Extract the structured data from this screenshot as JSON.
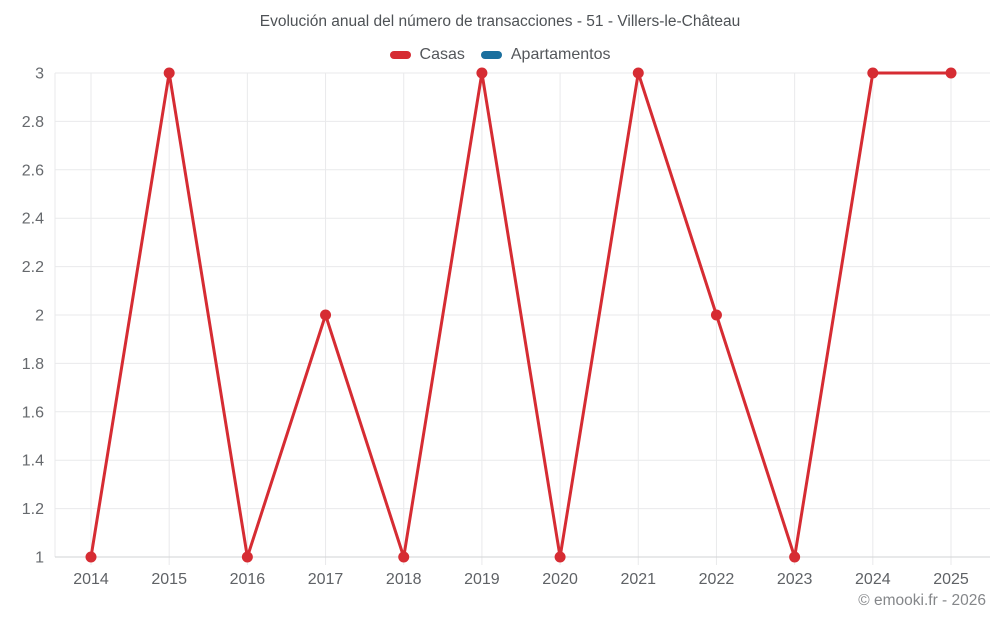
{
  "title": "Evolución anual del número de transacciones - 51 - Villers-le-Château",
  "watermark": "© emooki.fr - 2026",
  "colors": {
    "background": "#ffffff",
    "grid": "#e9eaeb",
    "axis": "#d2d3d5",
    "x_tick_label": "#5f6266",
    "y_tick_label": "#66696d",
    "title": "#4e5256",
    "legend_text": "#54575b",
    "watermark": "#85878a",
    "casas": "#d62c33",
    "apartamentos": "#1a6f9e"
  },
  "chart_data": {
    "type": "line",
    "title": "Evolución anual del número de transacciones - 51 - Villers-le-Château",
    "categories": [
      "2014",
      "2015",
      "2016",
      "2017",
      "2018",
      "2019",
      "2020",
      "2021",
      "2022",
      "2023",
      "2024",
      "2025"
    ],
    "series": [
      {
        "name": "Casas",
        "color": "#d62c33",
        "values": [
          1,
          3,
          1,
          2,
          1,
          3,
          1,
          3,
          2,
          1,
          3,
          3
        ]
      },
      {
        "name": "Apartamentos",
        "color": "#1a6f9e",
        "values": []
      }
    ],
    "xlabel": "",
    "ylabel": "",
    "ylim": [
      1,
      3
    ],
    "yticks": [
      1,
      1.2,
      1.4,
      1.6,
      1.8,
      2,
      2.2,
      2.4,
      2.6,
      2.8,
      3
    ],
    "grid": true,
    "legend_position": "top",
    "marker": "circle"
  }
}
